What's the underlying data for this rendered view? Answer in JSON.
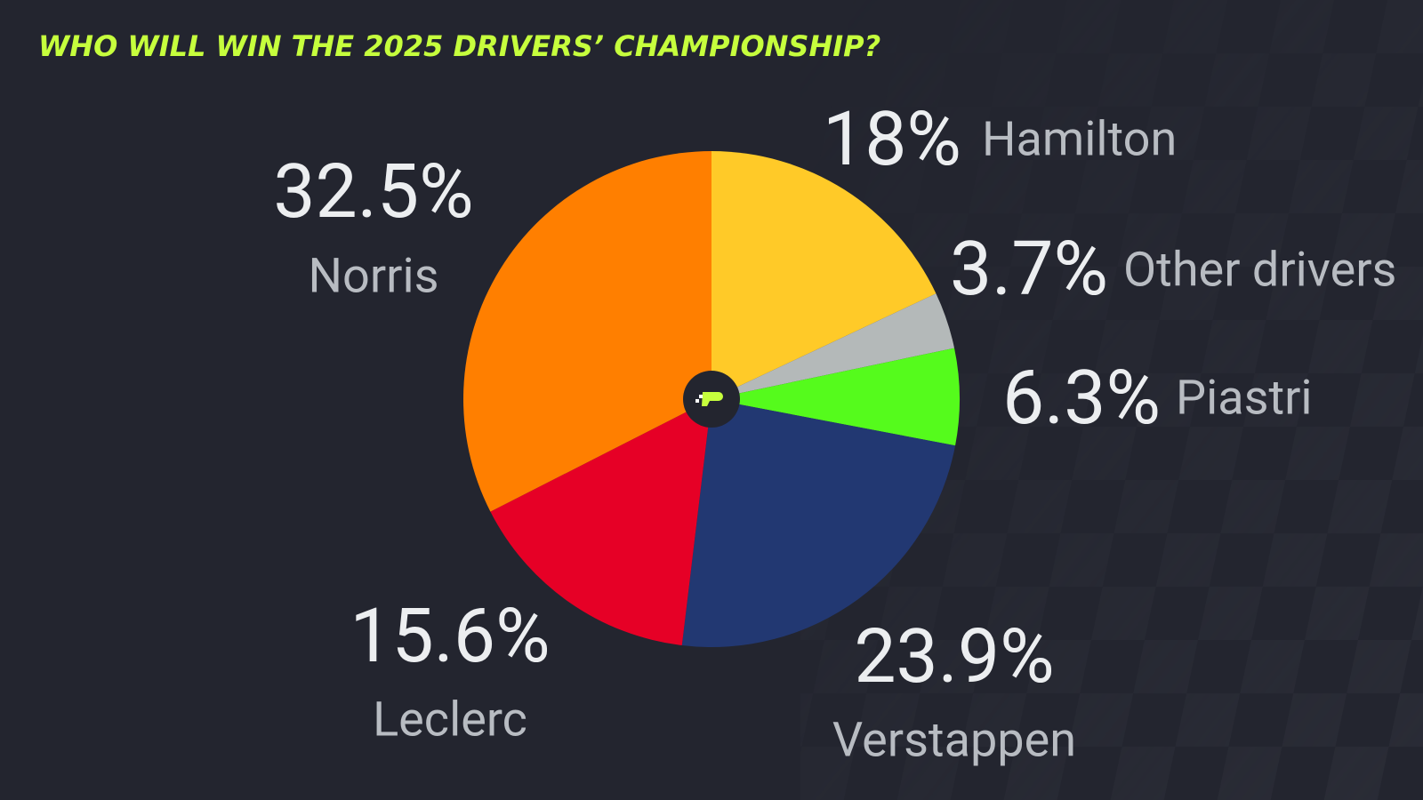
{
  "chart_data": {
    "type": "pie",
    "title": "WHO WILL WIN THE 2025 DRIVERS’ CHAMPIONSHIP?",
    "categories": [
      "Hamilton",
      "Other drivers",
      "Piastri",
      "Verstappen",
      "Leclerc",
      "Norris"
    ],
    "values": [
      18,
      3.7,
      6.3,
      23.9,
      15.6,
      32.5
    ],
    "value_labels": [
      "18%",
      "3.7%",
      "6.3%",
      "23.9%",
      "15.6%",
      "32.5%"
    ],
    "colors": [
      "#ffca28",
      "#b4b9b9",
      "#55fb1c",
      "#223872",
      "#e60026",
      "#ff7f00"
    ]
  }
}
